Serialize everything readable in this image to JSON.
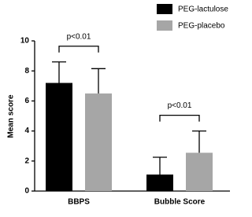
{
  "chart_data": {
    "type": "bar",
    "y_label": "Mean score",
    "categories": [
      "BBPS",
      "Bubble Score"
    ],
    "series": [
      {
        "name": "PEG-lactulose",
        "color": "#000000",
        "values": [
          7.2,
          1.1
        ],
        "errors": [
          1.4,
          1.15
        ]
      },
      {
        "name": "PEG-placebo",
        "color": "#a6a6a6",
        "values": [
          6.5,
          2.55
        ],
        "errors": [
          1.65,
          1.45
        ]
      }
    ],
    "annotations": [
      "p<0.01",
      "p<0.01"
    ],
    "ylim": [
      0,
      10
    ],
    "yticks": [
      0,
      2,
      4,
      6,
      8,
      10
    ],
    "legend": "upper right",
    "grid": false
  }
}
